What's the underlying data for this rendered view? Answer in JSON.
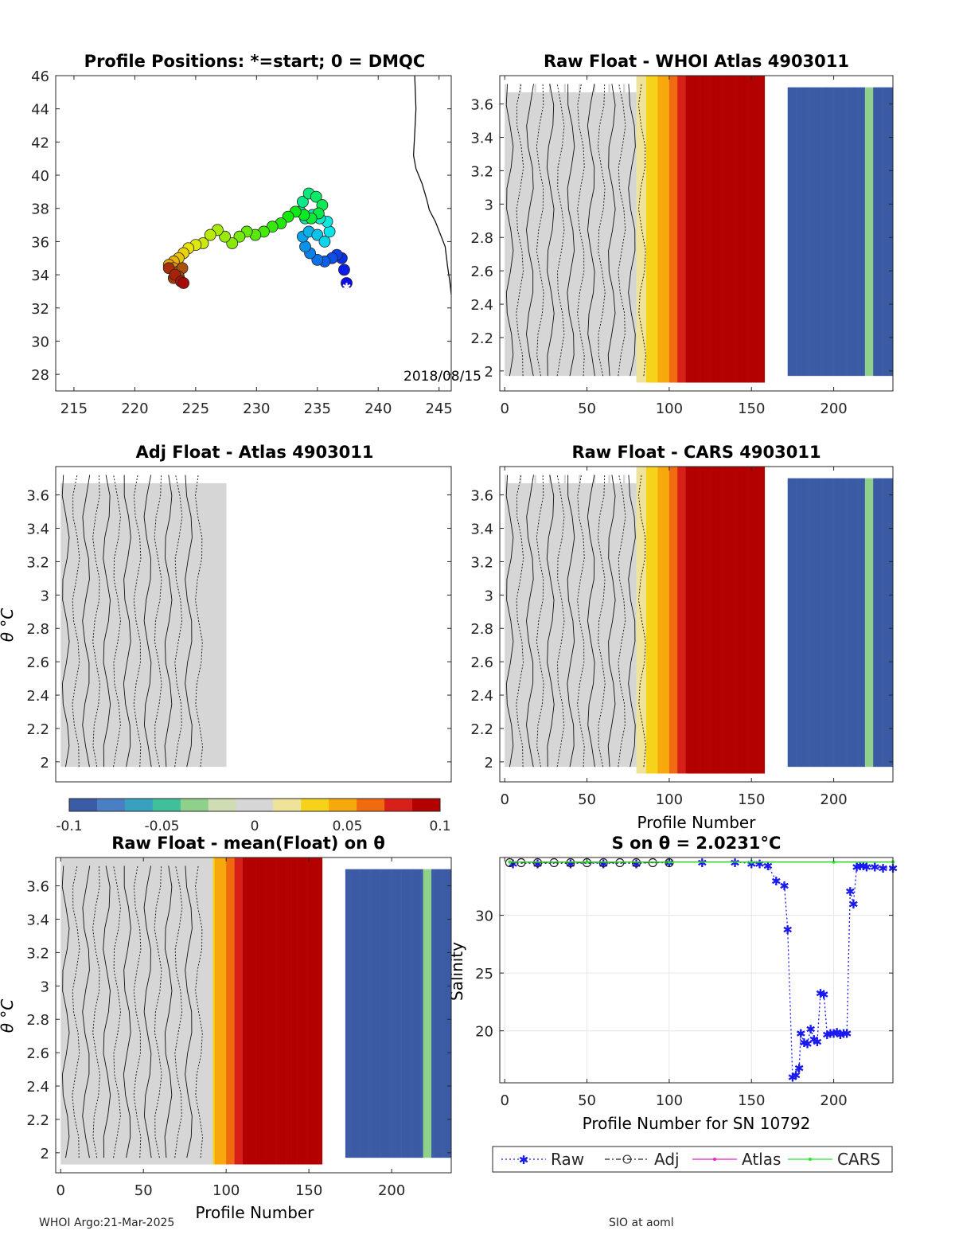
{
  "figure": {
    "footer_left": "WHOI Argo:21-Mar-2025",
    "footer_right": "SIO at aoml"
  },
  "chart_data": [
    {
      "id": "map",
      "type": "scatter",
      "title": "Profile Positions: *=start; 0 = DMQC",
      "xlim": [
        213.5,
        246
      ],
      "ylim": [
        27,
        46
      ],
      "xticks": [
        "215",
        "220",
        "225",
        "230",
        "235",
        "240",
        "245"
      ],
      "yticks": [
        "28",
        "30",
        "32",
        "34",
        "36",
        "38",
        "40",
        "42",
        "44",
        "46"
      ],
      "annotation": "2018/08/15",
      "track_lon": [
        237.4,
        237.2,
        237.0,
        236.6,
        236.2,
        235.6,
        235.0,
        234.4,
        234.0,
        233.8,
        234.3,
        235.0,
        235.6,
        236.0,
        235.8,
        235.2,
        234.6,
        234.0,
        233.6,
        233.8,
        234.3,
        234.9,
        235.4,
        235.1,
        234.5,
        233.9,
        233.2,
        232.6,
        232.0,
        231.3,
        230.6,
        229.9,
        229.2,
        228.6,
        228.0,
        227.4,
        226.8,
        226.2,
        225.6,
        225.0,
        224.4,
        224.0,
        223.6,
        223.2,
        222.8,
        223.2,
        223.6,
        223.9,
        223.6,
        223.2,
        222.8,
        223.3,
        223.8,
        224.0
      ],
      "track_lat": [
        33.5,
        34.3,
        35.0,
        35.2,
        35.0,
        34.8,
        34.9,
        35.3,
        35.7,
        36.3,
        36.6,
        36.4,
        36.0,
        36.6,
        37.2,
        37.4,
        37.6,
        37.4,
        37.8,
        38.4,
        38.9,
        38.7,
        38.2,
        37.7,
        37.4,
        37.6,
        37.8,
        37.5,
        37.1,
        36.9,
        36.6,
        36.4,
        36.6,
        36.3,
        35.9,
        36.3,
        36.7,
        36.4,
        35.9,
        35.8,
        35.6,
        35.3,
        35.0,
        34.8,
        34.6,
        34.4,
        34.2,
        34.4,
        33.9,
        33.8,
        34.4,
        34.0,
        33.6,
        33.5
      ],
      "start_marker": {
        "lon": 237.4,
        "lat": 33.3
      }
    },
    {
      "id": "whoi_atlas",
      "type": "heatmap",
      "title": "Raw Float - WHOI Atlas  4903011",
      "xlim": [
        -3,
        236
      ],
      "ylim": [
        1.88,
        3.77
      ],
      "xticks": [
        "0",
        "50",
        "100",
        "150",
        "200"
      ],
      "yticks": [
        "2",
        "2.2",
        "2.4",
        "2.6",
        "2.8",
        "3",
        "3.2",
        "3.4",
        "3.6"
      ],
      "profile_values": "anomaly ~0 for profiles 0-80, rising 0.03-0.1 for 85-160, -0.1 for 172-236"
    },
    {
      "id": "adj_atlas",
      "type": "heatmap",
      "title": "Adj Float - Atlas  4903011",
      "ylabel": "θ °C",
      "xlim": [
        -3,
        236
      ],
      "ylim": [
        1.88,
        3.77
      ],
      "yticks": [
        "2",
        "2.2",
        "2.4",
        "2.6",
        "2.8",
        "3",
        "3.2",
        "3.4",
        "3.6"
      ],
      "profile_values": "anomaly ~0 for profiles 0-100"
    },
    {
      "id": "cars",
      "type": "heatmap",
      "title": "Raw Float - CARS  4903011",
      "xlabel": "Profile Number",
      "xlim": [
        -3,
        236
      ],
      "ylim": [
        1.88,
        3.77
      ],
      "xticks": [
        "0",
        "50",
        "100",
        "150",
        "200"
      ],
      "yticks": [
        "2",
        "2.2",
        "2.4",
        "2.6",
        "2.8",
        "3",
        "3.2",
        "3.4",
        "3.6"
      ]
    },
    {
      "id": "colorbar",
      "type": "heatmap",
      "range": [
        -0.1,
        0.1
      ],
      "ticks": [
        "-0.1",
        "-0.05",
        "0",
        "0.05",
        "0.1"
      ],
      "colors": [
        "#3b5ba5",
        "#4a7fc4",
        "#3aa0c0",
        "#3fbf9a",
        "#8fd18a",
        "#d0dcb4",
        "#d6d6d6",
        "#efe39a",
        "#f6d21a",
        "#f7a80c",
        "#f06a10",
        "#d7201a",
        "#b30000"
      ]
    },
    {
      "id": "mean",
      "type": "heatmap",
      "title": "Raw Float - mean(Float) on θ",
      "xlabel": "Profile Number",
      "ylabel": "θ °C",
      "xlim": [
        -3,
        236
      ],
      "ylim": [
        1.88,
        3.77
      ],
      "xticks": [
        "0",
        "50",
        "100",
        "150",
        "200"
      ],
      "yticks": [
        "2",
        "2.2",
        "2.4",
        "2.6",
        "2.8",
        "3",
        "3.2",
        "3.4",
        "3.6"
      ]
    },
    {
      "id": "salinity",
      "type": "line",
      "title": "S on θ = 2.0231°C",
      "xlabel": "Profile Number for SN 10792",
      "ylabel": "Salinity",
      "xlim": [
        -3,
        236
      ],
      "ylim": [
        15.5,
        35
      ],
      "xticks": [
        "0",
        "50",
        "100",
        "150",
        "200"
      ],
      "yticks": [
        "20",
        "25",
        "30"
      ],
      "grid": true,
      "legend": [
        "Raw",
        "Adj",
        "Atlas",
        "CARS"
      ],
      "series": [
        {
          "name": "Raw",
          "color": "#1a1aee",
          "x": [
            5,
            20,
            40,
            60,
            80,
            100,
            120,
            140,
            150,
            155,
            160,
            165,
            170,
            172,
            175,
            177,
            179,
            180,
            182,
            184,
            186,
            188,
            190,
            192,
            194,
            196,
            198,
            200,
            202,
            204,
            206,
            208,
            210,
            212,
            214,
            216,
            218,
            220,
            225,
            230,
            236
          ],
          "y": [
            34.5,
            34.5,
            34.5,
            34.5,
            34.5,
            34.6,
            34.6,
            34.6,
            34.5,
            34.5,
            34.3,
            33.0,
            32.6,
            28.8,
            16.0,
            16.2,
            16.8,
            19.8,
            19.0,
            18.9,
            20.2,
            19.3,
            19.1,
            23.3,
            23.2,
            19.7,
            19.8,
            19.8,
            19.9,
            19.7,
            19.8,
            19.8,
            32.1,
            31.0,
            34.2,
            34.3,
            34.3,
            34.2,
            34.2,
            34.1,
            34.1
          ]
        },
        {
          "name": "Adj",
          "color": "#222222",
          "x": [
            3,
            10,
            20,
            30,
            40,
            50,
            60,
            70,
            80,
            90,
            100
          ],
          "y": [
            34.55,
            34.55,
            34.55,
            34.55,
            34.55,
            34.55,
            34.55,
            34.55,
            34.55,
            34.55,
            34.55
          ]
        },
        {
          "name": "Atlas",
          "color": "#ee22cc",
          "x": [
            3,
            236
          ],
          "y": [
            34.62,
            34.62
          ]
        },
        {
          "name": "CARS",
          "color": "#22ee22",
          "x": [
            3,
            50,
            100,
            150,
            200,
            236
          ],
          "y": [
            34.6,
            34.6,
            34.6,
            34.6,
            34.6,
            34.6
          ]
        }
      ]
    }
  ]
}
